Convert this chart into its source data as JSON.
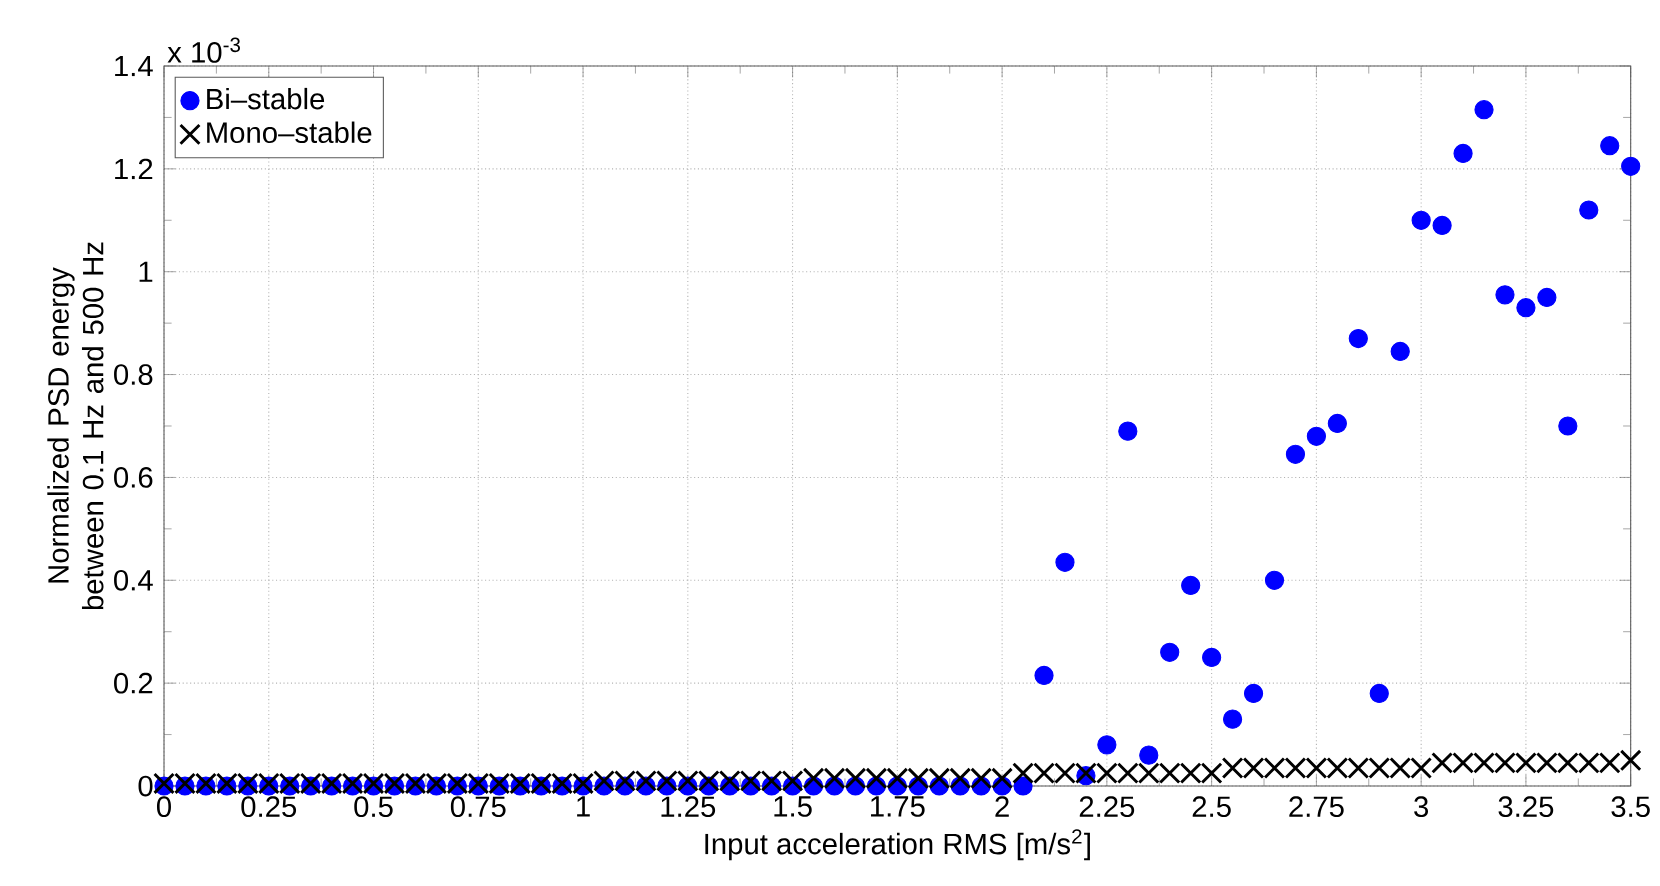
{
  "chart_data": {
    "type": "scatter",
    "xlabel": "Input acceleration RMS [m/s$^{2}$]",
    "ylabel": "Normalized PSD energy between 0.1 Hz and 500 Hz",
    "annotations": [
      "x 10$^{-3}$"
    ],
    "x": [
      0,
      0.05,
      0.1,
      0.15,
      0.2,
      0.25,
      0.3,
      0.35,
      0.4,
      0.45,
      0.5,
      0.55,
      0.6,
      0.65,
      0.7,
      0.75,
      0.8,
      0.85,
      0.9,
      0.95,
      1,
      1.05,
      1.1,
      1.15,
      1.2,
      1.25,
      1.3,
      1.35,
      1.4,
      1.45,
      1.5,
      1.55,
      1.6,
      1.65,
      1.7,
      1.75,
      1.8,
      1.85,
      1.9,
      1.95,
      2,
      2.05,
      2.1,
      2.15,
      2.2,
      2.25,
      2.3,
      2.35,
      2.4,
      2.45,
      2.5,
      2.55,
      2.6,
      2.65,
      2.7,
      2.75,
      2.8,
      2.85,
      2.9,
      2.95,
      3,
      3.05,
      3.1,
      3.15,
      3.2,
      3.25,
      3.3,
      3.35,
      3.4,
      3.45,
      3.5
    ],
    "series": [
      {
        "name": "Bi–stable",
        "color": "#0000ff",
        "marker": "circle",
        "values": [
          0,
          0,
          0,
          0,
          0,
          0,
          0,
          0,
          0,
          0,
          0,
          0,
          0,
          0,
          0,
          0,
          0,
          0,
          0,
          0,
          0,
          0,
          0,
          0,
          0,
          0,
          0,
          0,
          0,
          0,
          0,
          0,
          0,
          0,
          0,
          0,
          0,
          0,
          0,
          0,
          0,
          0,
          0.215,
          0.435,
          0.02,
          0.08,
          0.69,
          0.06,
          0.26,
          0.39,
          0.25,
          0.13,
          0.18,
          0.4,
          0.645,
          0.68,
          0.705,
          0.87,
          0.18,
          0.845,
          1.1,
          1.09,
          1.23,
          1.315,
          0.955,
          0.93,
          0.95,
          0.7,
          1.12,
          1.245,
          1.205
        ]
      },
      {
        "name": "Mono–stable",
        "color": "#000000",
        "marker": "cross",
        "values": [
          0.005,
          0.005,
          0.005,
          0.005,
          0.005,
          0.005,
          0.005,
          0.005,
          0.005,
          0.005,
          0.005,
          0.005,
          0.005,
          0.005,
          0.005,
          0.005,
          0.005,
          0.005,
          0.005,
          0.005,
          0.005,
          0.01,
          0.01,
          0.01,
          0.01,
          0.01,
          0.01,
          0.01,
          0.01,
          0.01,
          0.01,
          0.015,
          0.015,
          0.015,
          0.015,
          0.015,
          0.015,
          0.015,
          0.015,
          0.015,
          0.015,
          0.025,
          0.025,
          0.025,
          0.025,
          0.025,
          0.025,
          0.025,
          0.025,
          0.025,
          0.025,
          0.035,
          0.035,
          0.035,
          0.035,
          0.035,
          0.035,
          0.035,
          0.035,
          0.035,
          0.035,
          0.045,
          0.045,
          0.045,
          0.045,
          0.045,
          0.045,
          0.045,
          0.045,
          0.045,
          0.05
        ]
      }
    ],
    "xlim": [
      0,
      3.5
    ],
    "ylim": [
      0,
      1.4
    ],
    "xticks": [
      0,
      0.25,
      0.5,
      0.75,
      1,
      1.25,
      1.5,
      1.75,
      2,
      2.25,
      2.5,
      2.75,
      3,
      3.25,
      3.5
    ],
    "yticks": [
      0,
      0.2,
      0.4,
      0.6,
      0.8,
      1,
      1.2,
      1.4
    ],
    "grid": true,
    "legend": "top left"
  }
}
